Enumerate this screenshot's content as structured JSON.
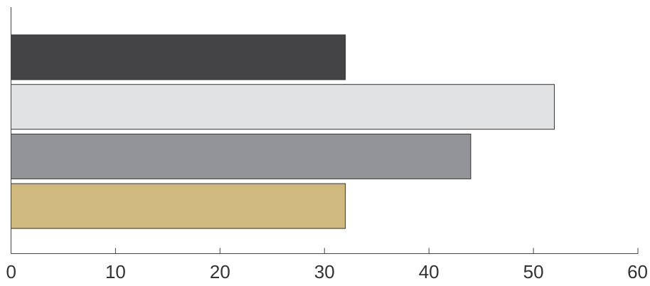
{
  "chart_data": {
    "type": "bar",
    "orientation": "horizontal",
    "title": "",
    "xlabel": "",
    "ylabel": "",
    "xlim": [
      0,
      60
    ],
    "x_ticks": [
      0,
      10,
      20,
      30,
      40,
      50,
      60
    ],
    "grid": false,
    "legend": "none",
    "bars": [
      {
        "value": 32,
        "color": "#444446"
      },
      {
        "value": 52,
        "color": "#e1e2e4"
      },
      {
        "value": 44,
        "color": "#939497"
      },
      {
        "value": 32,
        "color": "#cfb97f"
      }
    ]
  }
}
